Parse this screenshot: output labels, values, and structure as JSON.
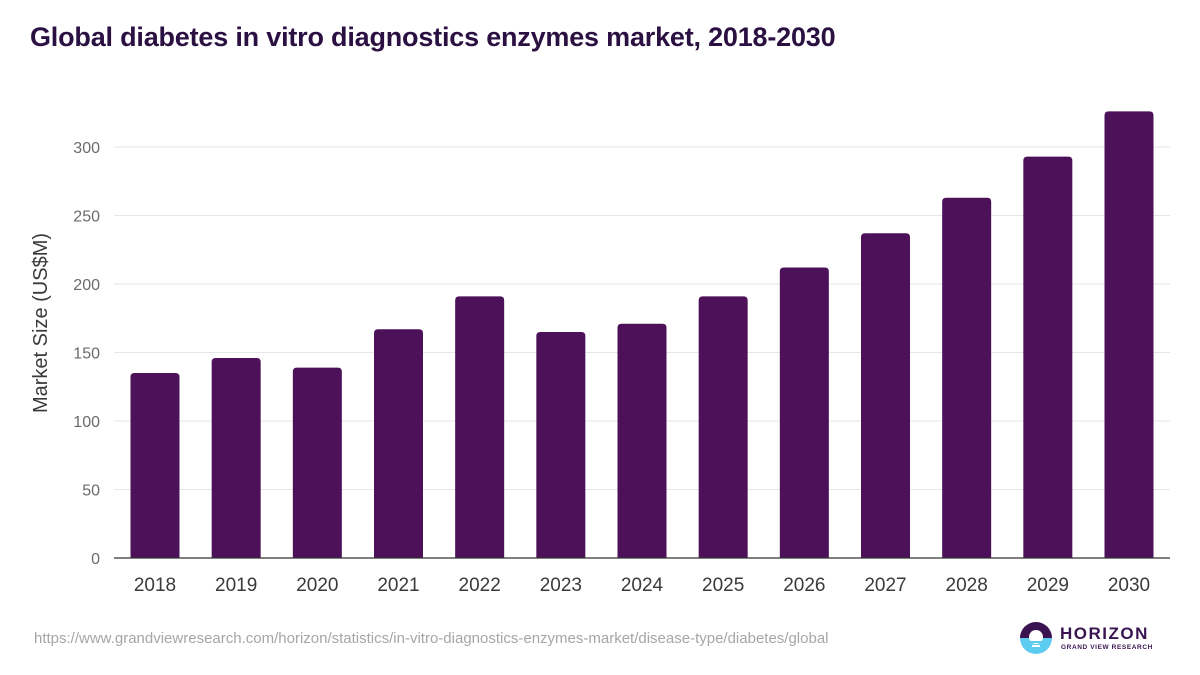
{
  "header": {
    "title": "Global diabetes in vitro diagnostics enzymes market, 2018-2030"
  },
  "footer": {
    "source_url": "https://www.grandviewresearch.com/horizon/statistics/in-vitro-diagnostics-enzymes-market/disease-type/diabetes/global",
    "logo": {
      "icon": "horizon-sunrise-icon",
      "wordmark": "HORIZON",
      "tagline": "GRAND VIEW RESEARCH"
    }
  },
  "colors": {
    "bar": "#4c1159",
    "title": "#2b1042",
    "grid": "#e6e6e6",
    "axis": "#333333",
    "logo_dark": "#3a1450",
    "logo_light": "#5ecbf0"
  },
  "chart_data": {
    "type": "bar",
    "title": "Global diabetes in vitro diagnostics enzymes market, 2018-2030",
    "xlabel": "",
    "ylabel": "Market Size (US$M)",
    "categories": [
      "2018",
      "2019",
      "2020",
      "2021",
      "2022",
      "2023",
      "2024",
      "2025",
      "2026",
      "2027",
      "2028",
      "2029",
      "2030"
    ],
    "values": [
      135,
      146,
      139,
      167,
      191,
      165,
      171,
      191,
      212,
      237,
      263,
      293,
      326
    ],
    "ylim": [
      0,
      300
    ],
    "yticks": [
      0,
      50,
      100,
      150,
      200,
      250,
      300
    ],
    "ytick_labels": [
      "0",
      "50",
      "100",
      "150",
      "200",
      "250",
      "300"
    ],
    "grid": true,
    "legend": "none"
  }
}
